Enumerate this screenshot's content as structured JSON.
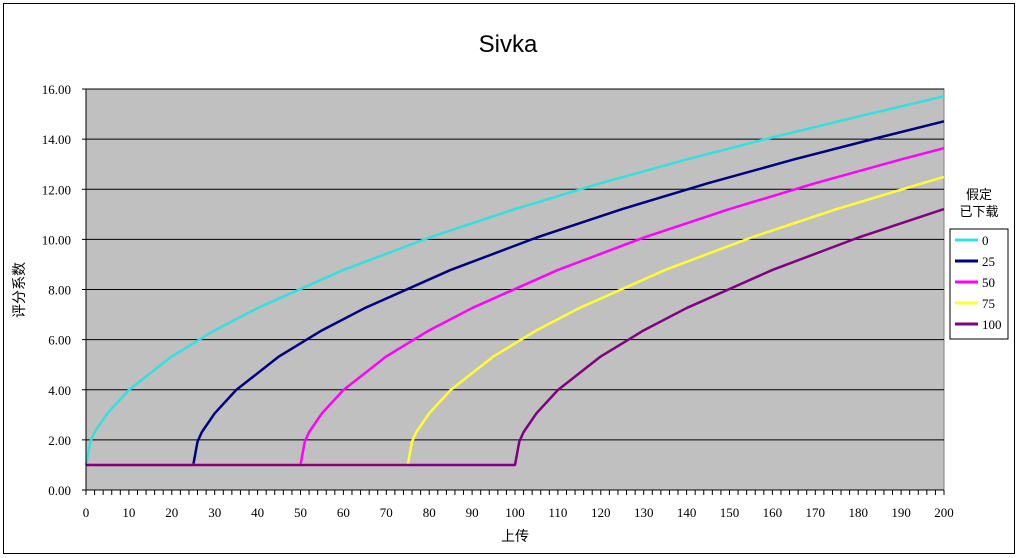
{
  "chart_data": {
    "type": "line",
    "title": "Sivka",
    "xlabel": "上传",
    "ylabel": "评分系数",
    "xlim": [
      0,
      200
    ],
    "ylim": [
      0,
      16
    ],
    "x_ticks": [
      "0",
      "10",
      "20",
      "30",
      "40",
      "50",
      "60",
      "70",
      "80",
      "90",
      "100",
      "110",
      "120",
      "130",
      "140",
      "150",
      "160",
      "170",
      "180",
      "190",
      "200"
    ],
    "y_ticks": [
      "0.00",
      "2.00",
      "4.00",
      "6.00",
      "8.00",
      "10.00",
      "12.00",
      "14.00",
      "16.00"
    ],
    "grid": true,
    "plot_background": "#c0c0c0",
    "legend_title_lines": [
      "假定",
      "已下载"
    ],
    "legend_position": "right",
    "series": [
      {
        "name": "0",
        "color": "#33e0e0",
        "x": [
          0,
          1,
          2,
          5,
          10,
          20,
          30,
          40,
          60,
          80,
          100,
          120,
          140,
          160,
          180,
          200
        ],
        "y": [
          1.0,
          1.93,
          2.31,
          3.06,
          3.99,
          5.33,
          6.37,
          7.26,
          8.78,
          10.07,
          11.21,
          12.24,
          13.19,
          14.07,
          14.9,
          15.71
        ]
      },
      {
        "name": "25",
        "color": "#000080",
        "x": [
          0,
          25,
          26,
          27,
          30,
          35,
          45,
          55,
          65,
          85,
          105,
          125,
          145,
          165,
          185,
          200
        ],
        "y": [
          1.0,
          1.0,
          1.93,
          2.31,
          3.06,
          3.99,
          5.33,
          6.37,
          7.26,
          8.78,
          10.07,
          11.21,
          12.24,
          13.19,
          14.07,
          14.71
        ]
      },
      {
        "name": "50",
        "color": "#ff00ff",
        "x": [
          0,
          50,
          51,
          52,
          55,
          60,
          70,
          80,
          90,
          110,
          130,
          150,
          170,
          190,
          200
        ],
        "y": [
          1.0,
          1.0,
          1.93,
          2.31,
          3.06,
          3.99,
          5.33,
          6.37,
          7.26,
          8.78,
          10.07,
          11.21,
          12.24,
          13.19,
          13.64
        ]
      },
      {
        "name": "75",
        "color": "#ffff33",
        "x": [
          0,
          75,
          76,
          77,
          80,
          85,
          95,
          105,
          115,
          135,
          155,
          175,
          195,
          200
        ],
        "y": [
          1.0,
          1.0,
          1.93,
          2.31,
          3.06,
          3.99,
          5.33,
          6.37,
          7.26,
          8.78,
          10.07,
          11.21,
          12.24,
          12.49
        ]
      },
      {
        "name": "100",
        "color": "#800080",
        "x": [
          0,
          100,
          101,
          102,
          105,
          110,
          120,
          130,
          140,
          160,
          180,
          200
        ],
        "y": [
          1.0,
          1.0,
          1.93,
          2.31,
          3.06,
          3.99,
          5.33,
          6.37,
          7.26,
          8.78,
          10.07,
          11.21
        ]
      }
    ]
  }
}
